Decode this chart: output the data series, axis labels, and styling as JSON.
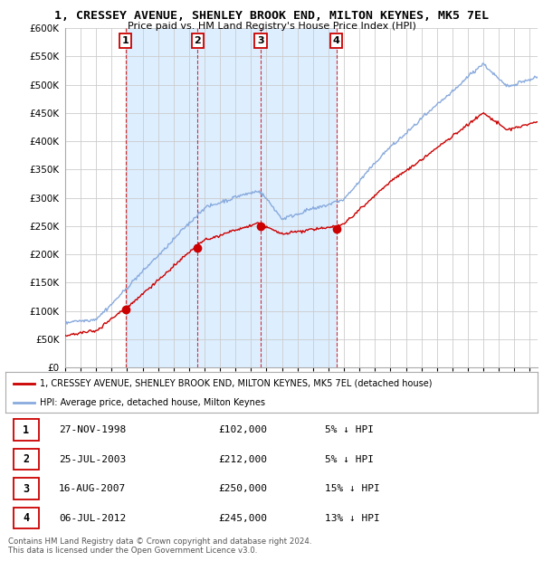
{
  "title": "1, CRESSEY AVENUE, SHENLEY BROOK END, MILTON KEYNES, MK5 7EL",
  "subtitle": "Price paid vs. HM Land Registry's House Price Index (HPI)",
  "ylim": [
    0,
    600000
  ],
  "yticks": [
    0,
    50000,
    100000,
    150000,
    200000,
    250000,
    300000,
    350000,
    400000,
    450000,
    500000,
    550000,
    600000
  ],
  "sale_decimal_dates": [
    1998.9,
    2003.55,
    2007.62,
    2012.51
  ],
  "sale_prices": [
    102000,
    212000,
    250000,
    245000
  ],
  "sale_labels": [
    "1",
    "2",
    "3",
    "4"
  ],
  "sale_color": "#cc0000",
  "hpi_color": "#88aadd",
  "shade_color": "#ddeeff",
  "legend_label_price": "1, CRESSEY AVENUE, SHENLEY BROOK END, MILTON KEYNES, MK5 7EL (detached house)",
  "legend_label_hpi": "HPI: Average price, detached house, Milton Keynes",
  "table_rows": [
    [
      "1",
      "27-NOV-1998",
      "£102,000",
      "5% ↓ HPI"
    ],
    [
      "2",
      "25-JUL-2003",
      "£212,000",
      "5% ↓ HPI"
    ],
    [
      "3",
      "16-AUG-2007",
      "£250,000",
      "15% ↓ HPI"
    ],
    [
      "4",
      "06-JUL-2012",
      "£245,000",
      "13% ↓ HPI"
    ]
  ],
  "footnote": "Contains HM Land Registry data © Crown copyright and database right 2024.\nThis data is licensed under the Open Government Licence v3.0.",
  "bg_color": "#ffffff",
  "grid_color": "#cccccc",
  "label_box_color": "#cc0000",
  "xmin": 1995,
  "xmax": 2025.5
}
